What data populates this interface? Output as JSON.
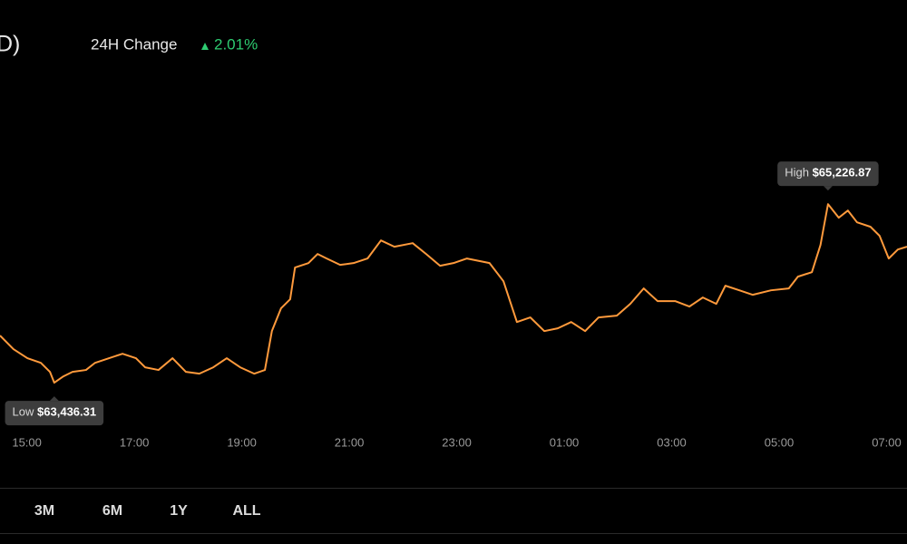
{
  "header": {
    "title_fragment": "D)",
    "change_label": "24H Change",
    "change_value": "2.01%"
  },
  "chart_data": {
    "type": "line",
    "color": "#ff9a3c",
    "x": [
      14.5,
      14.75,
      15.01,
      15.26,
      15.43,
      15.51,
      15.68,
      15.85,
      16.1,
      16.27,
      16.53,
      16.78,
      17.03,
      17.2,
      17.45,
      17.71,
      17.96,
      18.21,
      18.47,
      18.72,
      18.97,
      19.23,
      19.43,
      19.56,
      19.73,
      19.9,
      19.99,
      20.24,
      20.41,
      20.58,
      20.83,
      21.08,
      21.34,
      21.59,
      21.84,
      22.18,
      22.43,
      22.69,
      22.94,
      23.19,
      23.61,
      23.87,
      24.12,
      24.37,
      24.63,
      24.88,
      25.13,
      25.39,
      25.64,
      25.98,
      26.23,
      26.48,
      26.74,
      27.07,
      27.33,
      27.58,
      27.83,
      28.0,
      28.26,
      28.51,
      28.85,
      29.18,
      29.35,
      29.61,
      29.77,
      29.91,
      30.11,
      30.28,
      30.45,
      30.7,
      30.87,
      31.04,
      31.21,
      31.38
    ],
    "values": [
      63909,
      63773,
      63682,
      63636,
      63545,
      63436.31,
      63500,
      63545,
      63564,
      63636,
      63682,
      63727,
      63682,
      63591,
      63564,
      63682,
      63545,
      63527,
      63591,
      63682,
      63591,
      63527,
      63564,
      63954,
      64182,
      64273,
      64591,
      64636,
      64727,
      64682,
      64618,
      64636,
      64682,
      64863,
      64800,
      64836,
      64727,
      64609,
      64636,
      64682,
      64636,
      64454,
      64045,
      64091,
      63954,
      63982,
      64045,
      63954,
      64091,
      64109,
      64227,
      64382,
      64254,
      64254,
      64200,
      64291,
      64227,
      64409,
      64363,
      64318,
      64363,
      64382,
      64500,
      64545,
      64818,
      65226.87,
      65091,
      65163,
      65045,
      65000,
      64909,
      64682,
      64772,
      64800
    ],
    "xlim": [
      14.5,
      31.38
    ],
    "ylim": [
      62910,
      66365
    ],
    "xticks": [
      {
        "value": 15,
        "label": "15:00"
      },
      {
        "value": 17,
        "label": "17:00"
      },
      {
        "value": 19,
        "label": "19:00"
      },
      {
        "value": 21,
        "label": "21:00"
      },
      {
        "value": 23,
        "label": "23:00"
      },
      {
        "value": 25,
        "label": "01:00"
      },
      {
        "value": 27,
        "label": "03:00"
      },
      {
        "value": 29,
        "label": "05:00"
      },
      {
        "value": 31,
        "label": "07:00"
      }
    ],
    "annotations": [
      {
        "text": "Low",
        "x": 15.51,
        "value": 63436.31,
        "value_label": "$63,436.31",
        "placement": "below"
      },
      {
        "text": "High",
        "x": 29.91,
        "value": 65226.87,
        "value_label": "$65,226.87",
        "placement": "above"
      }
    ]
  },
  "ranges": [
    "3M",
    "6M",
    "1Y",
    "ALL"
  ]
}
